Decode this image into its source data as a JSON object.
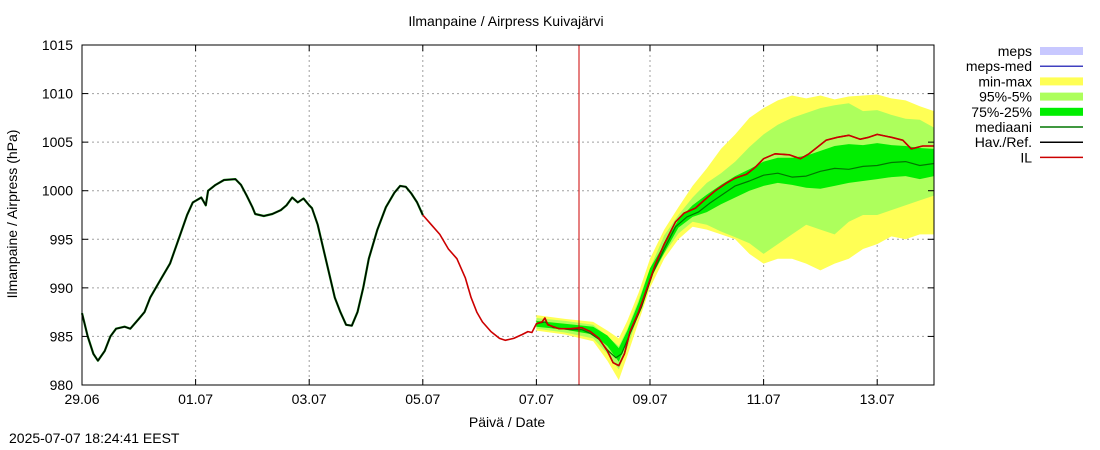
{
  "chart_data": {
    "type": "line",
    "title": "Ilmanpaine / Airpress Kuivajärvi",
    "xlabel": "Päivä / Date",
    "ylabel": "Ilmanpaine / Airpress (hPa)",
    "ylim": [
      980,
      1015
    ],
    "xlim": [
      0,
      15
    ],
    "x_unit_note": "days since 29.06 00:00",
    "yticks": [
      980,
      985,
      990,
      995,
      1000,
      1005,
      1010,
      1015
    ],
    "xticks": [
      {
        "x": 0,
        "label": "29.06"
      },
      {
        "x": 2,
        "label": "01.07"
      },
      {
        "x": 4,
        "label": "03.07"
      },
      {
        "x": 6,
        "label": "05.07"
      },
      {
        "x": 8,
        "label": "07.07"
      },
      {
        "x": 10,
        "label": "09.07"
      },
      {
        "x": 12,
        "label": "11.07"
      },
      {
        "x": 14,
        "label": "13.07"
      }
    ],
    "grid": true,
    "legend_position": "right-outside-top",
    "now_marker_x": 8.75,
    "legend": [
      {
        "label": "meps",
        "color": "#c8c8ff",
        "kind": "band"
      },
      {
        "label": "meps-med",
        "color": "#4040c0",
        "kind": "line"
      },
      {
        "label": "min-max",
        "color": "#ffff55",
        "kind": "band"
      },
      {
        "label": "95%-5%",
        "color": "#adff5c",
        "kind": "band"
      },
      {
        "label": "75%-25%",
        "color": "#00ee00",
        "kind": "band"
      },
      {
        "label": "mediaani",
        "color": "#007700",
        "kind": "line"
      },
      {
        "label": "Hav./Ref.",
        "color": "#000000",
        "kind": "line"
      },
      {
        "label": "IL",
        "color": "#cc0000",
        "kind": "line"
      }
    ],
    "series": {
      "observed": [
        [
          0,
          987.4
        ],
        [
          0.1,
          985
        ],
        [
          0.2,
          983.2
        ],
        [
          0.28,
          982.5
        ],
        [
          0.4,
          983.5
        ],
        [
          0.5,
          985
        ],
        [
          0.6,
          985.8
        ],
        [
          0.75,
          986
        ],
        [
          0.85,
          985.8
        ],
        [
          1.0,
          986.8
        ],
        [
          1.1,
          987.5
        ],
        [
          1.2,
          989
        ],
        [
          1.4,
          991
        ],
        [
          1.55,
          992.5
        ],
        [
          1.7,
          995
        ],
        [
          1.85,
          997.5
        ],
        [
          1.95,
          998.8
        ],
        [
          2.1,
          999.3
        ],
        [
          2.18,
          998.5
        ],
        [
          2.22,
          1000
        ],
        [
          2.35,
          1000.6
        ],
        [
          2.5,
          1001.1
        ],
        [
          2.7,
          1001.2
        ],
        [
          2.8,
          1000.6
        ],
        [
          2.9,
          999.5
        ],
        [
          3.0,
          998.3
        ],
        [
          3.05,
          997.6
        ],
        [
          3.2,
          997.4
        ],
        [
          3.35,
          997.6
        ],
        [
          3.5,
          998
        ],
        [
          3.6,
          998.5
        ],
        [
          3.7,
          999.3
        ],
        [
          3.8,
          998.8
        ],
        [
          3.9,
          999.2
        ],
        [
          4.0,
          998.5
        ],
        [
          4.05,
          998.2
        ],
        [
          4.15,
          996.5
        ],
        [
          4.25,
          994
        ],
        [
          4.35,
          991.5
        ],
        [
          4.45,
          989
        ],
        [
          4.55,
          987.5
        ],
        [
          4.65,
          986.2
        ],
        [
          4.75,
          986.1
        ],
        [
          4.85,
          987.5
        ],
        [
          4.95,
          990
        ],
        [
          5.05,
          993
        ],
        [
          5.2,
          996
        ],
        [
          5.35,
          998.3
        ],
        [
          5.5,
          999.8
        ],
        [
          5.6,
          1000.5
        ],
        [
          5.7,
          1000.4
        ],
        [
          5.8,
          999.7
        ],
        [
          5.9,
          998.8
        ],
        [
          6.0,
          997.5
        ]
      ],
      "forecast_IL": [
        [
          6.0,
          997.5
        ],
        [
          6.15,
          996.5
        ],
        [
          6.3,
          995.5
        ],
        [
          6.45,
          994
        ],
        [
          6.6,
          993
        ],
        [
          6.75,
          991
        ],
        [
          6.85,
          989
        ],
        [
          6.95,
          987.5
        ],
        [
          7.05,
          986.5
        ],
        [
          7.2,
          985.5
        ],
        [
          7.35,
          984.8
        ],
        [
          7.45,
          984.6
        ],
        [
          7.6,
          984.8
        ],
        [
          7.75,
          985.2
        ],
        [
          7.85,
          985.5
        ],
        [
          7.92,
          985.4
        ],
        [
          8.0,
          986.3
        ],
        [
          8.1,
          986.5
        ],
        [
          8.15,
          986.9
        ],
        [
          8.2,
          986.2
        ],
        [
          8.4,
          985.8
        ],
        [
          8.6,
          985.8
        ],
        [
          8.8,
          985.9
        ],
        [
          8.95,
          985.5
        ],
        [
          9.1,
          984.8
        ],
        [
          9.25,
          983.5
        ],
        [
          9.35,
          982.3
        ],
        [
          9.45,
          982
        ],
        [
          9.55,
          983.2
        ],
        [
          9.65,
          985.5
        ],
        [
          9.8,
          987.5
        ],
        [
          9.95,
          990
        ],
        [
          10.1,
          992.5
        ],
        [
          10.25,
          994.5
        ],
        [
          10.45,
          996.8
        ],
        [
          10.6,
          997.7
        ],
        [
          10.8,
          998.2
        ],
        [
          10.95,
          999
        ],
        [
          11.15,
          1000
        ],
        [
          11.35,
          1000.8
        ],
        [
          11.5,
          1001.3
        ],
        [
          11.7,
          1001.7
        ],
        [
          11.85,
          1002.4
        ],
        [
          12.0,
          1003.3
        ],
        [
          12.2,
          1003.8
        ],
        [
          12.45,
          1003.7
        ],
        [
          12.65,
          1003.3
        ],
        [
          12.8,
          1003.8
        ],
        [
          12.95,
          1004.5
        ],
        [
          13.1,
          1005.2
        ],
        [
          13.3,
          1005.5
        ],
        [
          13.5,
          1005.7
        ],
        [
          13.7,
          1005.3
        ],
        [
          13.85,
          1005.5
        ],
        [
          14.0,
          1005.8
        ],
        [
          14.25,
          1005.5
        ],
        [
          14.45,
          1005.2
        ],
        [
          14.6,
          1004.3
        ],
        [
          14.8,
          1004.6
        ],
        [
          15.0,
          1004.6
        ]
      ],
      "median": [
        [
          8.0,
          986.3
        ],
        [
          8.15,
          986.5
        ],
        [
          8.3,
          985.9
        ],
        [
          8.6,
          985.7
        ],
        [
          8.8,
          985.7
        ],
        [
          8.95,
          985.3
        ],
        [
          9.1,
          984.7
        ],
        [
          9.25,
          983.6
        ],
        [
          9.4,
          982.8
        ],
        [
          9.5,
          983.2
        ],
        [
          9.65,
          985.3
        ],
        [
          9.85,
          988
        ],
        [
          10.05,
          991.5
        ],
        [
          10.25,
          994
        ],
        [
          10.45,
          996.3
        ],
        [
          10.65,
          997.3
        ],
        [
          10.85,
          997.8
        ],
        [
          11.05,
          998.7
        ],
        [
          11.3,
          999.7
        ],
        [
          11.5,
          1000.5
        ],
        [
          11.75,
          1001
        ],
        [
          12.0,
          1001.6
        ],
        [
          12.25,
          1001.8
        ],
        [
          12.5,
          1001.4
        ],
        [
          12.75,
          1001.5
        ],
        [
          13.0,
          1002
        ],
        [
          13.25,
          1002.3
        ],
        [
          13.5,
          1002.2
        ],
        [
          13.75,
          1002.5
        ],
        [
          14.0,
          1002.6
        ],
        [
          14.25,
          1002.9
        ],
        [
          14.5,
          1003
        ],
        [
          14.75,
          1002.6
        ],
        [
          15.0,
          1002.8
        ]
      ],
      "band_minmax": {
        "x": [
          8.0,
          8.5,
          9.0,
          9.25,
          9.45,
          9.6,
          9.8,
          10.0,
          10.25,
          10.5,
          10.75,
          11.0,
          11.25,
          11.5,
          11.75,
          12.0,
          12.25,
          12.5,
          12.75,
          13.0,
          13.25,
          13.5,
          13.75,
          14.0,
          14.25,
          14.5,
          14.75,
          15.0
        ],
        "lo": [
          985.6,
          985.2,
          984.5,
          982.5,
          980.5,
          983,
          986.5,
          990,
          993,
          995,
          996.3,
          996,
          995.5,
          995,
          993.5,
          992.5,
          993,
          993,
          992.5,
          991.8,
          992.5,
          993,
          994,
          994.5,
          995.3,
          995,
          995.5,
          995.5
        ],
        "hi": [
          987.2,
          986.8,
          986.5,
          985.6,
          984.8,
          986.6,
          989.5,
          993,
          996,
          998.3,
          1000.5,
          1002.3,
          1004.3,
          1005.8,
          1007.5,
          1008.5,
          1009.3,
          1009.8,
          1009.5,
          1009.8,
          1009.4,
          1009.7,
          1009.8,
          1009.9,
          1009.5,
          1009.3,
          1008.7,
          1008.2
        ]
      },
      "band_95_5": {
        "x": [
          8.0,
          8.5,
          9.0,
          9.25,
          9.45,
          9.6,
          9.8,
          10.0,
          10.25,
          10.5,
          10.75,
          11.0,
          11.25,
          11.5,
          11.75,
          12.0,
          12.25,
          12.5,
          12.75,
          13.0,
          13.25,
          13.5,
          13.75,
          14.0,
          14.25,
          14.5,
          14.75,
          15.0
        ],
        "lo": [
          985.8,
          985.4,
          984.8,
          983.2,
          981.6,
          983.8,
          987.3,
          990.8,
          993.5,
          995.6,
          996.8,
          996.5,
          995.8,
          995.2,
          994.6,
          993.5,
          994.5,
          995.5,
          996.5,
          996,
          995.5,
          996.8,
          997.5,
          997.5,
          998,
          998.5,
          999,
          999.5
        ],
        "hi": [
          986.9,
          986.6,
          986.2,
          985,
          984,
          985.8,
          988.8,
          992,
          995.4,
          997.5,
          999.3,
          1000.8,
          1001.8,
          1003,
          1004.5,
          1005.8,
          1006.8,
          1007.5,
          1008,
          1008.5,
          1008.8,
          1009,
          1008.2,
          1008.3,
          1007.8,
          1007.4,
          1007.3,
          1006.5
        ]
      },
      "band_75_25": {
        "x": [
          8.0,
          8.5,
          9.0,
          9.25,
          9.45,
          9.6,
          9.8,
          10.0,
          10.25,
          10.5,
          10.75,
          11.0,
          11.25,
          11.5,
          11.75,
          12.0,
          12.25,
          12.5,
          12.75,
          13.0,
          13.25,
          13.5,
          13.75,
          14.0,
          14.25,
          14.5,
          14.75,
          15.0
        ],
        "lo": [
          986,
          985.7,
          985.2,
          984,
          982.4,
          984.6,
          987.6,
          990.9,
          993.6,
          996.2,
          997.3,
          997.8,
          998.6,
          999.3,
          1000,
          1000.5,
          1000.8,
          1000.6,
          1000.3,
          1000.2,
          1000.5,
          1000.8,
          1001,
          1001.2,
          1001.4,
          1001.5,
          1001.2,
          1001.5
        ],
        "hi": [
          986.6,
          986.3,
          986,
          985.1,
          983.8,
          985.6,
          988.5,
          992,
          994.5,
          997,
          998.5,
          999.6,
          1000.6,
          1001.5,
          1002.2,
          1003,
          1003.4,
          1003.4,
          1003.6,
          1004.1,
          1004.6,
          1004.8,
          1004.7,
          1004.9,
          1004.7,
          1004.6,
          1004.4,
          1004.3
        ]
      }
    }
  },
  "timestamp": "2025-07-07 18:24:41 EEST"
}
